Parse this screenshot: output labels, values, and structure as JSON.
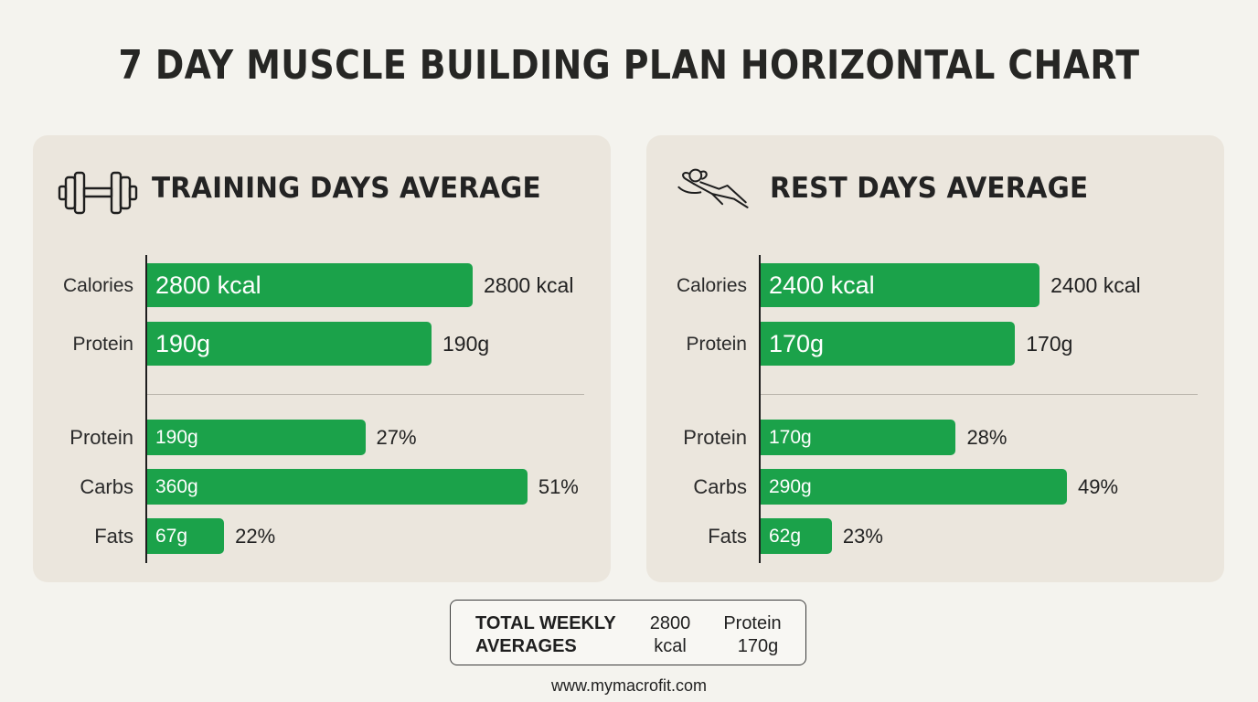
{
  "title": "7 DAY MUSCLE BUILDING PLAN HORIZONTAL CHART",
  "colors": {
    "bar": "#1ba24a",
    "panel": "#ebe6dd",
    "background": "#f4f3ee"
  },
  "panels": {
    "left": {
      "title": "TRAINING DAYS AVERAGE",
      "icon": "dumbbell-icon"
    },
    "right": {
      "title": "REST DAYS AVERAGE",
      "icon": "relaxing-person-icon"
    }
  },
  "chart_data": [
    {
      "type": "bar",
      "orientation": "horizontal",
      "title": "TRAINING DAYS AVERAGE",
      "groups": [
        {
          "categories": [
            "Calories",
            "Protein"
          ],
          "values": [
            2800,
            190
          ],
          "bar_labels": [
            "2800 kcal",
            "190g"
          ],
          "end_labels": [
            "2800 kcal",
            "190g"
          ]
        },
        {
          "categories": [
            "Protein",
            "Carbs",
            "Fats"
          ],
          "grams": [
            190,
            360,
            67
          ],
          "percent": [
            27,
            51,
            22
          ],
          "bar_labels": [
            "190g",
            "360g",
            "67g"
          ],
          "end_labels": [
            "27%",
            "51%",
            "22%"
          ]
        }
      ]
    },
    {
      "type": "bar",
      "orientation": "horizontal",
      "title": "REST DAYS AVERAGE",
      "groups": [
        {
          "categories": [
            "Calories",
            "Protein"
          ],
          "values": [
            2400,
            170
          ],
          "bar_labels": [
            "2400 kcal",
            "170g"
          ],
          "end_labels": [
            "2400 kcal",
            "170g"
          ]
        },
        {
          "categories": [
            "Protein",
            "Carbs",
            "Fats"
          ],
          "grams": [
            170,
            290,
            62
          ],
          "percent": [
            28,
            49,
            23
          ],
          "bar_labels": [
            "170g",
            "290g",
            "62g"
          ],
          "end_labels": [
            "28%",
            "49%",
            "23%"
          ]
        }
      ]
    }
  ],
  "summary": {
    "label_line1": "TOTAL WEEKLY",
    "label_line2": "AVERAGES",
    "cal_line1": "2800",
    "cal_line2": "kcal",
    "protein_line1": "Protein",
    "protein_line2": "170g"
  },
  "footer": "www.mymacrofit.com"
}
